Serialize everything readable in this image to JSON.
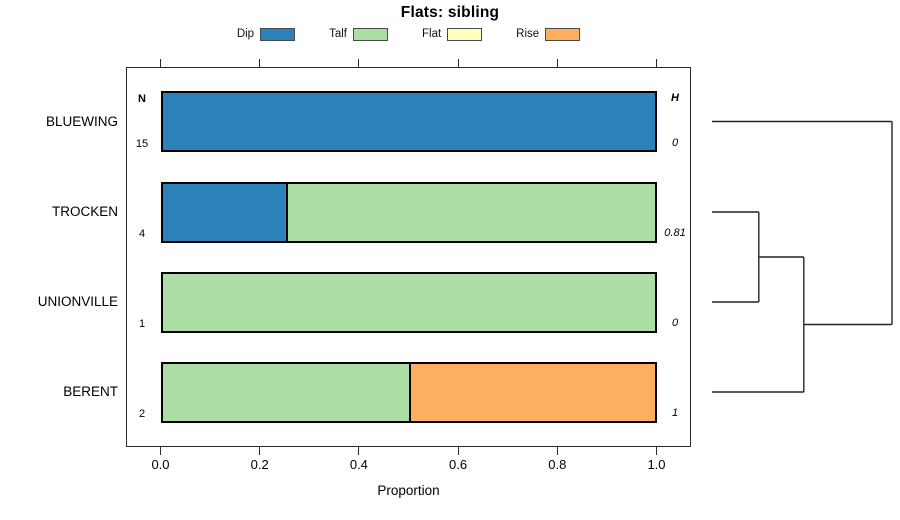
{
  "title": "Flats: sibling",
  "legend": {
    "items": [
      {
        "label": "Dip",
        "color": "#2B83BA"
      },
      {
        "label": "Talf",
        "color": "#ABDDA4"
      },
      {
        "label": "Flat",
        "color": "#FFFFBF"
      },
      {
        "label": "Rise",
        "color": "#FDAE61"
      }
    ]
  },
  "columns": {
    "n_header": "N",
    "h_header": "H"
  },
  "x_axis": {
    "label": "Proportion",
    "tick_labels": [
      "0.0",
      "0.2",
      "0.4",
      "0.6",
      "0.8",
      "1.0"
    ],
    "tick_values": [
      0,
      0.2,
      0.4,
      0.6,
      0.8,
      1.0
    ]
  },
  "chart_data": {
    "type": "bar",
    "stacked": true,
    "orientation": "horizontal",
    "title": "Flats: sibling",
    "xlabel": "Proportion",
    "xlim": [
      0,
      1
    ],
    "grid": false,
    "legend_position": "top",
    "categories": [
      "BLUEWING",
      "TROCKEN",
      "UNIONVILLE",
      "BERENT"
    ],
    "n_values": [
      "15",
      "4",
      "1",
      "2"
    ],
    "h_values": [
      "0",
      "0.81",
      "0",
      "1"
    ],
    "series": [
      {
        "name": "Dip",
        "color": "#2B83BA",
        "values": [
          1,
          0.25,
          0,
          0
        ]
      },
      {
        "name": "Talf",
        "color": "#ABDDA4",
        "values": [
          0,
          0.75,
          1,
          0.5
        ]
      },
      {
        "name": "Flat",
        "color": "#FFFFBF",
        "values": [
          0,
          0,
          0,
          0
        ]
      },
      {
        "name": "Rise",
        "color": "#FDAE61",
        "values": [
          0,
          0,
          0,
          0.5
        ]
      }
    ]
  },
  "dendrogram": {
    "leaves": [
      "BLUEWING",
      "TROCKEN",
      "UNIONVILLE",
      "BERENT"
    ],
    "merges": [
      {
        "a": "TROCKEN",
        "b": "UNIONVILLE",
        "height": 0.26
      },
      {
        "a": "merge0",
        "b": "BERENT",
        "height": 0.51
      },
      {
        "a": "BLUEWING",
        "b": "merge1",
        "height": 1.0
      }
    ]
  }
}
